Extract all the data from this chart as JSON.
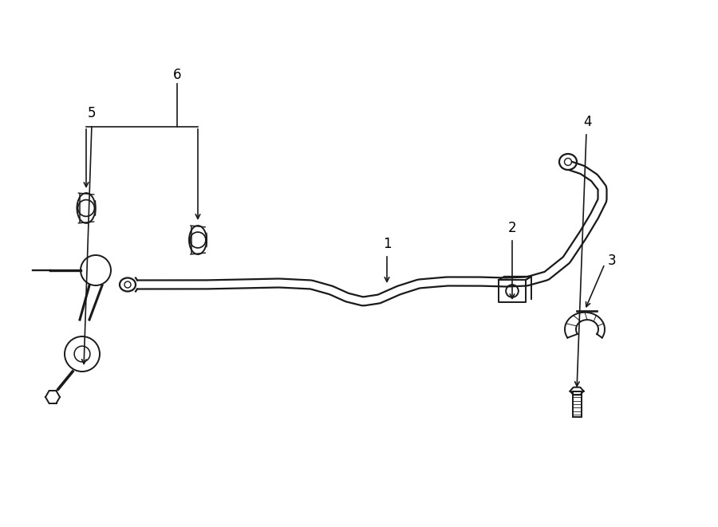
{
  "bg_color": "#ffffff",
  "line_color": "#1a1a1a",
  "label_color": "#000000",
  "fig_width": 9.0,
  "fig_height": 6.61,
  "dpi": 100,
  "bar_lw": 1.6,
  "component_lw": 1.4,
  "label_fontsize": 12
}
